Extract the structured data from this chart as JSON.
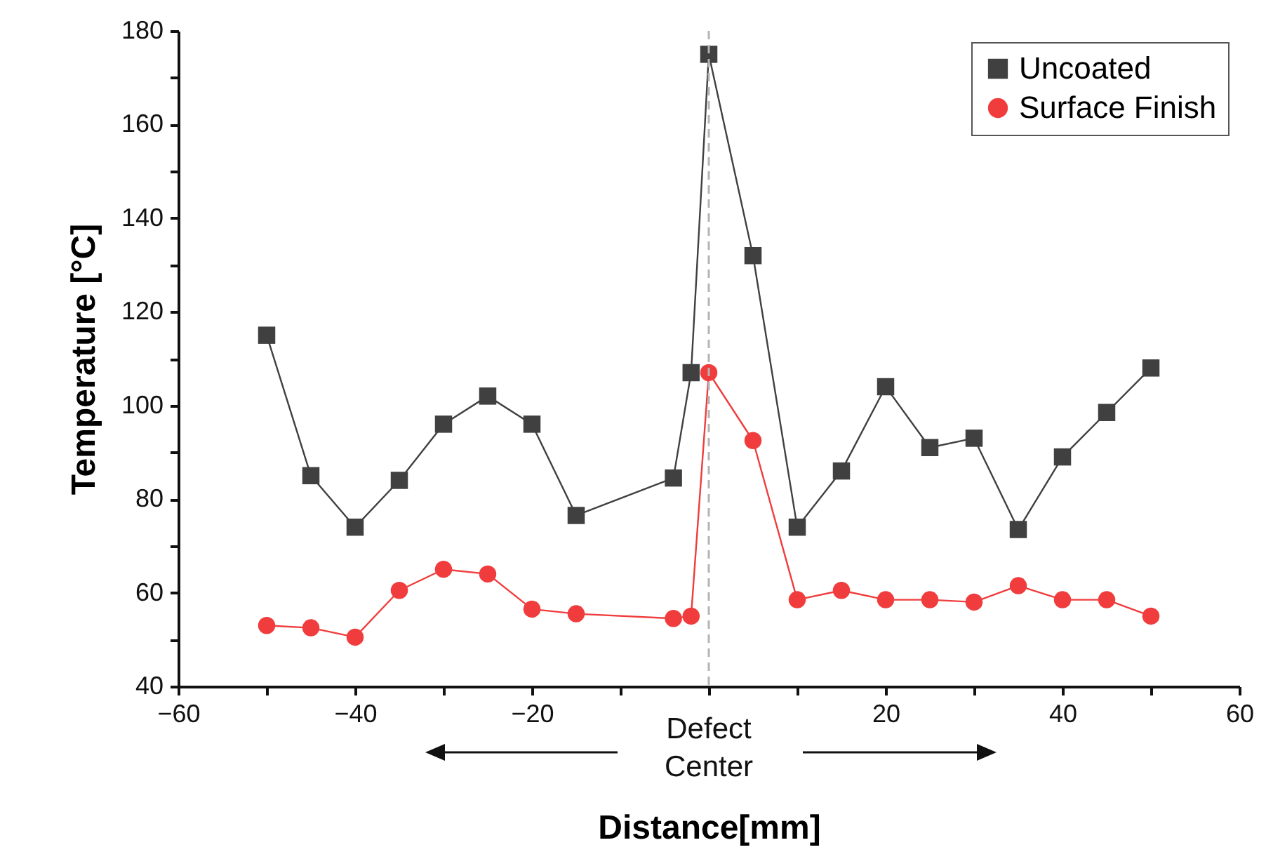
{
  "chart_data": {
    "type": "line",
    "xlabel": "Distance[mm]",
    "ylabel": "Temperature [°C]",
    "x": [
      -50,
      -45,
      -40,
      -35,
      -30,
      -25,
      -20,
      -15,
      -4,
      -2,
      0,
      5,
      10,
      15,
      20,
      25,
      30,
      35,
      40,
      45,
      50
    ],
    "series": [
      {
        "name": "Uncoated",
        "color": "#404040",
        "marker": "square",
        "values": [
          115,
          85,
          74,
          84,
          96,
          102,
          96,
          76.5,
          84.5,
          107,
          175,
          132,
          74,
          86,
          104,
          91,
          93,
          73.5,
          89,
          98.5,
          108
        ]
      },
      {
        "name": "Surface Finish",
        "color": "#f03c3c",
        "marker": "circle",
        "values": [
          53,
          52.5,
          50.5,
          60.5,
          65,
          64,
          56.5,
          55.5,
          54.5,
          55,
          107,
          92.5,
          58.5,
          60.5,
          58.5,
          58.5,
          58,
          61.5,
          58.5,
          58.5,
          55
        ]
      }
    ],
    "xlim": [
      -60,
      60
    ],
    "xticks": [
      -60,
      {
        "value": -50,
        "label": null
      },
      -40,
      {
        "value": -30,
        "label": null
      },
      -20,
      {
        "value": -10,
        "label": null
      },
      {
        "value": 0,
        "label": null
      },
      {
        "value": 10,
        "label": null
      },
      20,
      {
        "value": 30,
        "label": null
      },
      40,
      {
        "value": 50,
        "label": null
      },
      60
    ],
    "ylim": [
      40,
      180
    ],
    "yticks": [
      40,
      {
        "value": 50,
        "label": null
      },
      60,
      {
        "value": 70,
        "label": null
      },
      80,
      {
        "value": 90,
        "label": null
      },
      100,
      {
        "value": 110,
        "label": null
      },
      120,
      {
        "value": 130,
        "label": null
      },
      140,
      {
        "value": 150,
        "label": null
      },
      160,
      {
        "value": 170,
        "label": null
      },
      180
    ],
    "ref_lines": [
      {
        "axis": "x",
        "value": 0,
        "color": "#b4b4b4",
        "line_style": "dashed"
      }
    ],
    "annotations": [
      "Defect Center"
    ],
    "legend": "top right",
    "grid": false
  }
}
